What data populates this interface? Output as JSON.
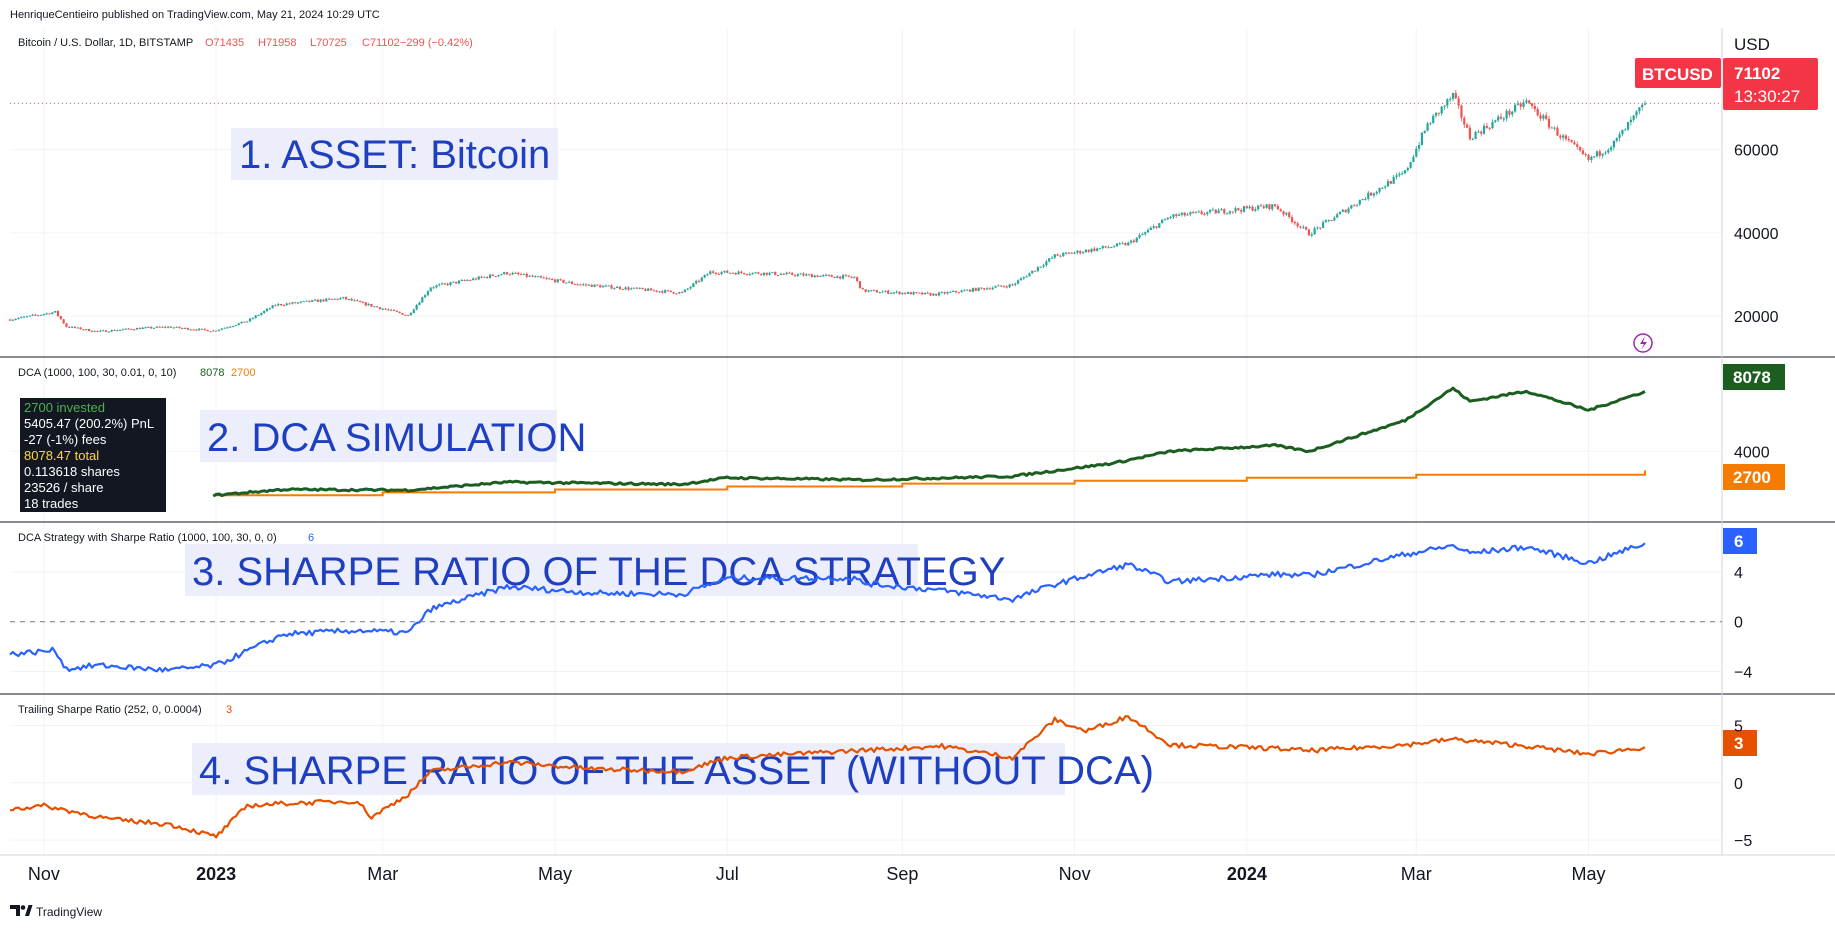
{
  "header": {
    "publisher": "HenriqueCentieiro published on TradingView.com, May 21, 2024 10:29 UTC",
    "currency": "USD"
  },
  "footer": {
    "brand": "TradingView"
  },
  "colors": {
    "up": "#26a69a",
    "down": "#ef5350",
    "dca_total": "#1b5e20",
    "dca_invested": "#f57c00",
    "dca_sharpe": "#2962ff",
    "trailing_sharpe": "#e65100",
    "banner_text": "#1e3fbf",
    "banner_bg": "#eceefb"
  },
  "time_axis": {
    "ticks": [
      {
        "date": "2022-11-01",
        "label": "Nov",
        "bold": false
      },
      {
        "date": "2023-01-01",
        "label": "2023",
        "bold": true
      },
      {
        "date": "2023-03-01",
        "label": "Mar",
        "bold": false
      },
      {
        "date": "2023-05-01",
        "label": "May",
        "bold": false
      },
      {
        "date": "2023-07-01",
        "label": "Jul",
        "bold": false
      },
      {
        "date": "2023-09-01",
        "label": "Sep",
        "bold": false
      },
      {
        "date": "2023-11-01",
        "label": "Nov",
        "bold": false
      },
      {
        "date": "2024-01-01",
        "label": "2024",
        "bold": true
      },
      {
        "date": "2024-03-01",
        "label": "Mar",
        "bold": false
      },
      {
        "date": "2024-05-01",
        "label": "May",
        "bold": false
      }
    ]
  },
  "chart_data": [
    {
      "id": "price",
      "type": "candlestick",
      "title": "Bitcoin / U.S. Dollar, 1D, BITSTAMP",
      "ohlc_label": {
        "o": "O71435",
        "h": "H71958",
        "l": "L70725",
        "c": "C71102",
        "change": "−299 (−0.42%)"
      },
      "banner": "1. ASSET: Bitcoin",
      "ylim": [
        15000,
        76000
      ],
      "yticks": [
        20000,
        40000,
        60000
      ],
      "last_price": 71102,
      "last_label": "71102",
      "symbol_label": "BTCUSD",
      "countdown": "13:30:27",
      "series": [
        {
          "date": "2022-10-20",
          "close": 19200
        },
        {
          "date": "2022-11-05",
          "close": 21000
        },
        {
          "date": "2022-11-09",
          "close": 17500
        },
        {
          "date": "2022-11-20",
          "close": 16300
        },
        {
          "date": "2022-12-05",
          "close": 17100
        },
        {
          "date": "2022-12-15",
          "close": 17400
        },
        {
          "date": "2022-12-31",
          "close": 16500
        },
        {
          "date": "2023-01-12",
          "close": 18800
        },
        {
          "date": "2023-01-22",
          "close": 22700
        },
        {
          "date": "2023-02-15",
          "close": 24300
        },
        {
          "date": "2023-03-10",
          "close": 20200
        },
        {
          "date": "2023-03-18",
          "close": 27000
        },
        {
          "date": "2023-04-14",
          "close": 30400
        },
        {
          "date": "2023-05-10",
          "close": 27600
        },
        {
          "date": "2023-06-15",
          "close": 25600
        },
        {
          "date": "2023-06-25",
          "close": 30600
        },
        {
          "date": "2023-07-15",
          "close": 30300
        },
        {
          "date": "2023-08-15",
          "close": 29300
        },
        {
          "date": "2023-08-18",
          "close": 26100
        },
        {
          "date": "2023-09-12",
          "close": 25200
        },
        {
          "date": "2023-10-10",
          "close": 27500
        },
        {
          "date": "2023-10-25",
          "close": 34500
        },
        {
          "date": "2023-11-20",
          "close": 37400
        },
        {
          "date": "2023-12-05",
          "close": 44000
        },
        {
          "date": "2024-01-11",
          "close": 46500
        },
        {
          "date": "2024-01-23",
          "close": 39800
        },
        {
          "date": "2024-02-10",
          "close": 47800
        },
        {
          "date": "2024-02-26",
          "close": 54500
        },
        {
          "date": "2024-03-05",
          "close": 66000
        },
        {
          "date": "2024-03-14",
          "close": 73000
        },
        {
          "date": "2024-03-20",
          "close": 63000
        },
        {
          "date": "2024-04-09",
          "close": 71500
        },
        {
          "date": "2024-04-20",
          "close": 64000
        },
        {
          "date": "2024-05-01",
          "close": 57500
        },
        {
          "date": "2024-05-10",
          "close": 61500
        },
        {
          "date": "2024-05-21",
          "close": 71102
        }
      ]
    },
    {
      "id": "dca",
      "type": "line",
      "title": "DCA (1000, 100, 30, 0.01, 0, 10)",
      "legend_values": [
        "8078",
        "2700"
      ],
      "banner": "2. DCA SIMULATION",
      "ylim": [
        0,
        9200
      ],
      "yticks": [
        4000
      ],
      "info_box": [
        "2700 invested",
        "5405.47 (200.2%) PnL",
        "-27 (-1%) fees",
        "8078.47 total",
        "0.113618 shares",
        "23526 / share",
        "18 trades"
      ],
      "badges": [
        "8078",
        "2700"
      ],
      "series": [
        {
          "name": "total",
          "color": "#1b5e20",
          "points": [
            {
              "date": "2022-12-31",
              "value": 1000
            },
            {
              "date": "2023-01-25",
              "value": 1400
            },
            {
              "date": "2023-03-10",
              "value": 1350
            },
            {
              "date": "2023-04-14",
              "value": 1900
            },
            {
              "date": "2023-06-15",
              "value": 1750
            },
            {
              "date": "2023-07-01",
              "value": 2200
            },
            {
              "date": "2023-08-18",
              "value": 2050
            },
            {
              "date": "2023-10-10",
              "value": 2300
            },
            {
              "date": "2023-11-15",
              "value": 3200
            },
            {
              "date": "2023-12-05",
              "value": 4000
            },
            {
              "date": "2024-01-11",
              "value": 4400
            },
            {
              "date": "2024-01-23",
              "value": 4000
            },
            {
              "date": "2024-02-26",
              "value": 6100
            },
            {
              "date": "2024-03-14",
              "value": 8300
            },
            {
              "date": "2024-03-20",
              "value": 7400
            },
            {
              "date": "2024-04-09",
              "value": 8100
            },
            {
              "date": "2024-05-01",
              "value": 6800
            },
            {
              "date": "2024-05-21",
              "value": 8078
            }
          ]
        },
        {
          "name": "invested",
          "color": "#f57c00",
          "points": [
            {
              "date": "2022-12-31",
              "value": 1000
            },
            {
              "date": "2023-03-01",
              "value": 1200
            },
            {
              "date": "2023-05-01",
              "value": 1400
            },
            {
              "date": "2023-07-01",
              "value": 1600
            },
            {
              "date": "2023-09-01",
              "value": 1800
            },
            {
              "date": "2023-11-01",
              "value": 2000
            },
            {
              "date": "2024-01-01",
              "value": 2200
            },
            {
              "date": "2024-03-01",
              "value": 2400
            },
            {
              "date": "2024-05-21",
              "value": 2700
            }
          ]
        }
      ]
    },
    {
      "id": "dca_sharpe",
      "type": "line",
      "title": "DCA Strategy with Sharpe Ratio (1000, 100, 30, 0, 0)",
      "legend_value": "6",
      "banner": "3. SHARPE RATIO OF THE DCA STRATEGY",
      "ylim": [
        -5,
        7.2
      ],
      "yticks": [
        4,
        0,
        -4
      ],
      "zero_line": 0,
      "badge": "6",
      "series": [
        {
          "name": "sharpe",
          "color": "#2962ff",
          "points": [
            {
              "date": "2022-10-20",
              "value": -2.6
            },
            {
              "date": "2022-11-05",
              "value": -2.3
            },
            {
              "date": "2022-11-09",
              "value": -3.8
            },
            {
              "date": "2022-11-20",
              "value": -3.5
            },
            {
              "date": "2022-12-15",
              "value": -3.9
            },
            {
              "date": "2023-01-01",
              "value": -3.5
            },
            {
              "date": "2023-01-25",
              "value": -1.0
            },
            {
              "date": "2023-02-20",
              "value": -0.7
            },
            {
              "date": "2023-03-10",
              "value": -0.9
            },
            {
              "date": "2023-03-18",
              "value": 1.0
            },
            {
              "date": "2023-03-25",
              "value": 1.5
            },
            {
              "date": "2023-04-14",
              "value": 2.8
            },
            {
              "date": "2023-05-15",
              "value": 2.3
            },
            {
              "date": "2023-06-15",
              "value": 2.2
            },
            {
              "date": "2023-07-01",
              "value": 3.5
            },
            {
              "date": "2023-08-15",
              "value": 3.5
            },
            {
              "date": "2023-08-18",
              "value": 3.1
            },
            {
              "date": "2023-09-15",
              "value": 2.5
            },
            {
              "date": "2023-10-10",
              "value": 1.8
            },
            {
              "date": "2023-10-25",
              "value": 3.0
            },
            {
              "date": "2023-11-20",
              "value": 4.6
            },
            {
              "date": "2023-12-05",
              "value": 3.2
            },
            {
              "date": "2024-01-11",
              "value": 3.8
            },
            {
              "date": "2024-01-23",
              "value": 3.7
            },
            {
              "date": "2024-02-26",
              "value": 5.4
            },
            {
              "date": "2024-03-14",
              "value": 6.1
            },
            {
              "date": "2024-03-20",
              "value": 5.5
            },
            {
              "date": "2024-04-09",
              "value": 6.0
            },
            {
              "date": "2024-05-01",
              "value": 4.7
            },
            {
              "date": "2024-05-21",
              "value": 6.3
            }
          ]
        }
      ]
    },
    {
      "id": "trailing_sharpe",
      "type": "line",
      "title": "Trailing Sharpe Ratio (252, 0, 0.0004)",
      "legend_value": "3",
      "banner": "4. SHARPE RATIO OF THE ASSET (WITHOUT DCA)",
      "ylim": [
        -5.6,
        6
      ],
      "yticks": [
        5,
        0,
        -5
      ],
      "badge": "3",
      "series": [
        {
          "name": "trailing",
          "color": "#e65100",
          "points": [
            {
              "date": "2022-10-20",
              "value": -2.3
            },
            {
              "date": "2022-11-01",
              "value": -2.0
            },
            {
              "date": "2022-11-25",
              "value": -3.2
            },
            {
              "date": "2022-12-15",
              "value": -3.6
            },
            {
              "date": "2023-01-01",
              "value": -4.7
            },
            {
              "date": "2023-01-12",
              "value": -2.0
            },
            {
              "date": "2023-01-25",
              "value": -1.8
            },
            {
              "date": "2023-02-20",
              "value": -1.6
            },
            {
              "date": "2023-02-25",
              "value": -3.0
            },
            {
              "date": "2023-03-10",
              "value": -1.0
            },
            {
              "date": "2023-03-18",
              "value": 1.0
            },
            {
              "date": "2023-04-14",
              "value": 1.8
            },
            {
              "date": "2023-05-15",
              "value": 1.2
            },
            {
              "date": "2023-06-15",
              "value": 1.0
            },
            {
              "date": "2023-07-01",
              "value": 2.2
            },
            {
              "date": "2023-08-15",
              "value": 2.8
            },
            {
              "date": "2023-09-15",
              "value": 3.2
            },
            {
              "date": "2023-10-10",
              "value": 2.2
            },
            {
              "date": "2023-10-25",
              "value": 5.5
            },
            {
              "date": "2023-11-05",
              "value": 4.5
            },
            {
              "date": "2023-11-20",
              "value": 5.8
            },
            {
              "date": "2023-12-05",
              "value": 3.3
            },
            {
              "date": "2024-01-11",
              "value": 3.0
            },
            {
              "date": "2024-01-23",
              "value": 2.8
            },
            {
              "date": "2024-02-26",
              "value": 3.3
            },
            {
              "date": "2024-03-14",
              "value": 3.8
            },
            {
              "date": "2024-04-09",
              "value": 3.2
            },
            {
              "date": "2024-05-01",
              "value": 2.5
            },
            {
              "date": "2024-05-21",
              "value": 3.1
            }
          ]
        }
      ]
    }
  ]
}
